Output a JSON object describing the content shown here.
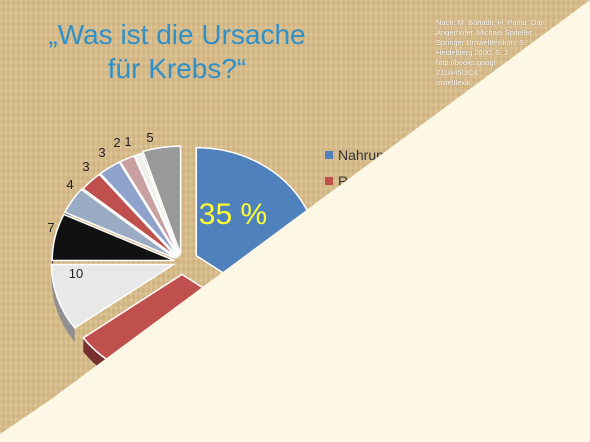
{
  "slide": {
    "title_line1": "„Was ist die Ursache",
    "title_line2": "für Krebs?“",
    "source_lines": [
      "Nach: M. Bahadir, H. Parlar, Dan",
      "Angerhöfer, Michael Spiteller",
      "Springer Umweltlexikon. S",
      "Heidelberg 2000, S. 2",
      "http://books.googl",
      "211w450IC&",
      "mweltlexik"
    ],
    "background": "#d9be8c",
    "overlay_color": "#fdf7e6"
  },
  "chart_data": {
    "type": "pie",
    "title": "",
    "legend": [
      {
        "label": "Nahrun",
        "color": "#4f81bd"
      },
      {
        "label": "Ra",
        "color": "#c0504d"
      }
    ],
    "slices": [
      {
        "label": "35 %",
        "value": 35,
        "color": "#4f81bd"
      },
      {
        "label": "",
        "value": 30,
        "color": "#c0504d"
      },
      {
        "label": "10",
        "value": 10,
        "color": "#e8e8e8"
      },
      {
        "label": "7",
        "value": 7,
        "color": "#111111"
      },
      {
        "label": "4",
        "value": 4,
        "color": "#9aabc4"
      },
      {
        "label": "3",
        "value": 3,
        "color": "#c0504d"
      },
      {
        "label": "3",
        "value": 3,
        "color": "#8ea2cc"
      },
      {
        "label": "2",
        "value": 2,
        "color": "#c9a0a0"
      },
      {
        "label": "1",
        "value": 1,
        "color": "#f0f0ea"
      },
      {
        "label": "5",
        "value": 5,
        "color": "#999999"
      }
    ]
  }
}
